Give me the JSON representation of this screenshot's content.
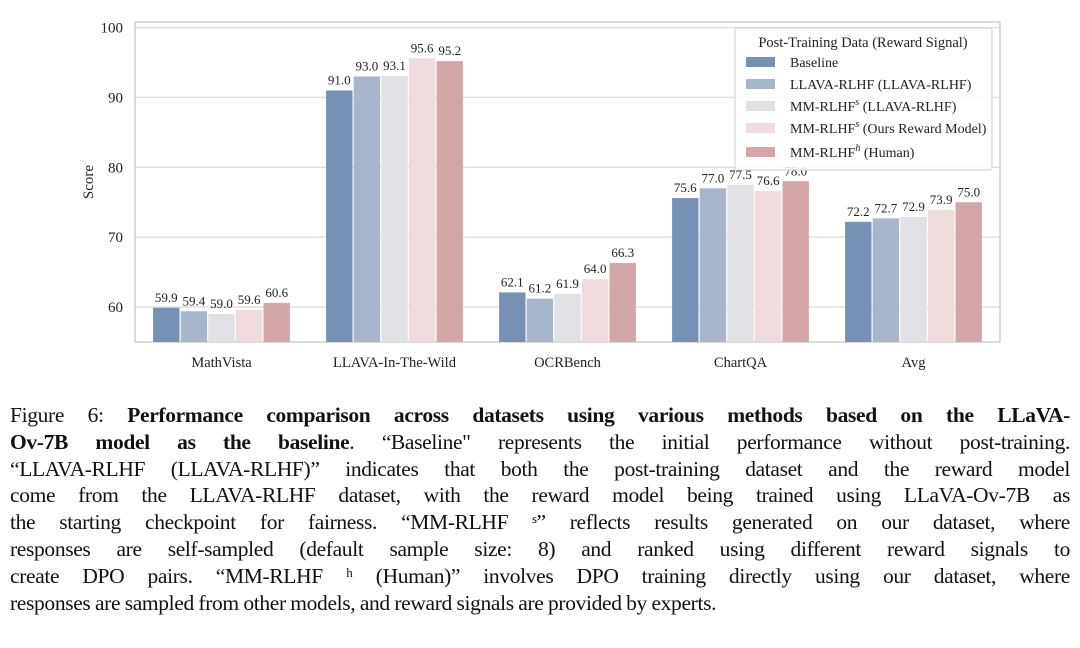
{
  "chart_data": {
    "type": "bar",
    "categories": [
      "MathVista",
      "LLAVA-In-The-Wild",
      "OCRBench",
      "ChartQA",
      "Avg"
    ],
    "series": [
      {
        "name": "Baseline",
        "name_base": "Baseline",
        "name_sup": "",
        "name_suffix": "",
        "color": "#7790b5",
        "values": [
          59.9,
          91.0,
          62.1,
          75.6,
          72.2
        ]
      },
      {
        "name": "LLAVA-RLHF (LLAVA-RLHF)",
        "name_base": "LLAVA-RLHF (LLAVA-RLHF)",
        "name_sup": "",
        "name_suffix": "",
        "color": "#a8b6cb",
        "values": [
          59.4,
          93.0,
          61.2,
          77.0,
          72.7
        ]
      },
      {
        "name": "MM-RLHF^s (LLAVA-RLHF)",
        "name_base": "MM-RLHF",
        "name_sup": "s",
        "name_suffix": " (LLAVA-RLHF)",
        "color": "#e1e1e6",
        "values": [
          59.0,
          93.1,
          61.9,
          77.5,
          72.9
        ]
      },
      {
        "name": "MM-RLHF^s (Ours Reward Model)",
        "name_base": "MM-RLHF",
        "name_sup": "s",
        "name_suffix": " (Ours Reward Model)",
        "color": "#f0dcdc",
        "values": [
          59.6,
          95.6,
          64.0,
          76.6,
          73.9
        ]
      },
      {
        "name": "MM-RLHF^h (Human)",
        "name_base": "MM-RLHF",
        "name_sup": "h",
        "name_suffix": " (Human)",
        "color": "#d4a6a7",
        "values": [
          60.6,
          95.2,
          66.3,
          78.0,
          75.0
        ]
      }
    ],
    "title": "",
    "xlabel": "",
    "ylabel": "Score",
    "ylim": [
      55,
      100.8
    ],
    "yticks": [
      "60",
      "70",
      "80",
      "90",
      "100"
    ],
    "data_labels": true,
    "grid": "horizontal",
    "legend": {
      "title": "Post-Training Data (Reward Signal)",
      "placement": "top-right"
    }
  },
  "caption": {
    "lines": [
      {
        "prefix": "Figure 6: ",
        "bold": "Performance comparison across datasets using various methods based on the LLaVA-",
        "text": ""
      },
      {
        "prefix": "",
        "bold": "Ov-7B model as the baseline",
        "text": ". “Baseline\" represents the initial performance without post-training."
      },
      {
        "prefix": "",
        "bold": "",
        "text": "“LLAVA-RLHF (LLAVA-RLHF)” indicates that both the post-training dataset and the reward model"
      },
      {
        "prefix": "",
        "bold": "",
        "text": "come from the LLAVA-RLHF dataset, with the reward model being trained using LLaVA-Ov-7B as"
      },
      {
        "prefix": "",
        "bold": "",
        "text": "the starting checkpoint for fairness. “MM-RLHF ˢ” reflects results generated on our dataset, where"
      },
      {
        "prefix": "",
        "bold": "",
        "text": "responses are self-sampled (default sample size: 8) and ranked using different reward signals to"
      },
      {
        "prefix": "",
        "bold": "",
        "text": "create DPO pairs. “MM-RLHF ʰ (Human)” involves DPO training directly using our dataset, where"
      },
      {
        "prefix": "",
        "bold": "",
        "text": "responses are sampled from other models, and reward signals are provided by experts."
      }
    ]
  }
}
